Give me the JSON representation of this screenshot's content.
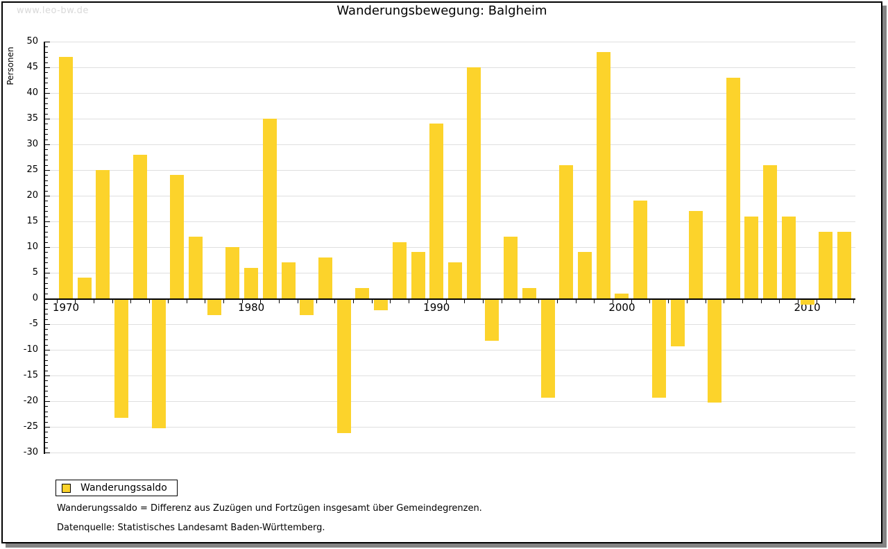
{
  "watermark": "www.leo-bw.de",
  "legend": {
    "label": "Wanderungssaldo"
  },
  "footnotes": [
    "Wanderungssaldo = Differenz aus Zuzügen und Fortzügen insgesamt über Gemeindegrenzen.",
    "Datenquelle: Statistisches Landesamt Baden-Württemberg."
  ],
  "chart_data": {
    "type": "bar",
    "title": "Wanderungsbewegung: Balgheim",
    "xlabel": "",
    "ylabel": "Personen",
    "ylim": [
      -30,
      50
    ],
    "ytick_step": 5,
    "yticks": [
      50,
      45,
      40,
      35,
      30,
      25,
      20,
      15,
      10,
      5,
      0,
      -5,
      -10,
      -15,
      -20,
      -25,
      -30
    ],
    "xticks_labeled": [
      "1970",
      "1980",
      "1990",
      "2000",
      "2010"
    ],
    "grid": true,
    "legend_position": "bottom-left",
    "bar_color": "#fcd32b",
    "grid_color": "#dfdfdf",
    "categories": [
      1970,
      1971,
      1972,
      1973,
      1974,
      1975,
      1976,
      1977,
      1978,
      1979,
      1980,
      1981,
      1982,
      1983,
      1984,
      1985,
      1986,
      1987,
      1988,
      1989,
      1990,
      1991,
      1992,
      1993,
      1994,
      1995,
      1996,
      1997,
      1998,
      1999,
      2000,
      2001,
      2002,
      2003,
      2004,
      2005,
      2006,
      2007,
      2008,
      2009,
      2010,
      2011,
      2012
    ],
    "series": [
      {
        "name": "Wanderungssaldo",
        "values": [
          47,
          4,
          25,
          -23,
          28,
          -25,
          24,
          12,
          -3,
          10,
          6,
          35,
          7,
          -3,
          8,
          -26,
          2,
          -2,
          11,
          9,
          34,
          7,
          45,
          -8,
          12,
          2,
          -19,
          26,
          9,
          48,
          1,
          19,
          -19,
          -9,
          17,
          -20,
          43,
          16,
          26,
          16,
          -1,
          13,
          13
        ]
      }
    ]
  }
}
